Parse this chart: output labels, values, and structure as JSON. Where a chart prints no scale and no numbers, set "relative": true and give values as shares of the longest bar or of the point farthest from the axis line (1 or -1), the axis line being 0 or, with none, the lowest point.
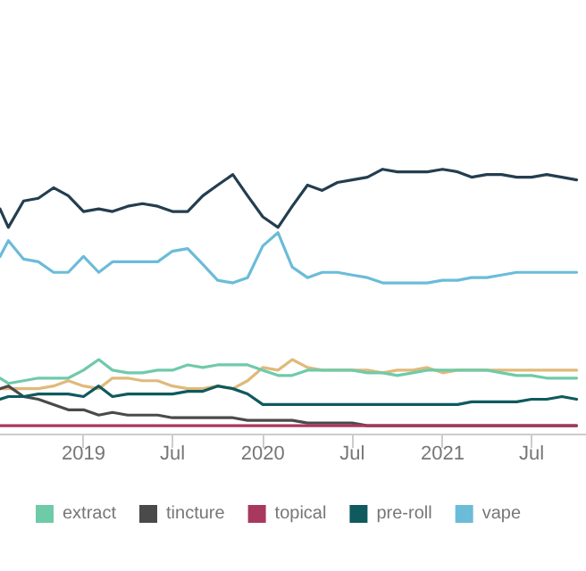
{
  "chart_data": {
    "type": "line",
    "relative": true,
    "legend": "bottom",
    "marker": "none",
    "line_style": "solid",
    "x": [
      "2018-07-15",
      "2018-08",
      "2018-09",
      "2018-10",
      "2018-11",
      "2018-12",
      "2019-01",
      "2019-02",
      "2019-03",
      "2019-04",
      "2019-05",
      "2019-06",
      "2019-07",
      "2019-08",
      "2019-09",
      "2019-10",
      "2019-11",
      "2019-12",
      "2020-01",
      "2020-02",
      "2020-03",
      "2020-04",
      "2020-05",
      "2020-06",
      "2020-07",
      "2020-08",
      "2020-09",
      "2020-10",
      "2020-11",
      "2020-12",
      "2021-01",
      "2021-02",
      "2021-03",
      "2021-04",
      "2021-05",
      "2021-06",
      "2021-07",
      "2021-08",
      "2021-09",
      "2021-10"
    ],
    "xlim": [
      "2018-07-15",
      "2021-10-20"
    ],
    "xticks": [
      {
        "value": "2019-01",
        "label": "2019"
      },
      {
        "value": "2019-07",
        "label": "Jul"
      },
      {
        "value": "2020-01",
        "label": "2020"
      },
      {
        "value": "2020-07",
        "label": "Jul"
      },
      {
        "value": "2021-01",
        "label": "2021"
      },
      {
        "value": "2021-07",
        "label": "Jul"
      }
    ],
    "series": [
      {
        "color": "#243e4f",
        "values": [
          0.85,
          0.78,
          0.88,
          0.89,
          0.93,
          0.9,
          0.84,
          0.85,
          0.84,
          0.86,
          0.87,
          0.86,
          0.84,
          0.84,
          0.9,
          0.94,
          0.98,
          0.9,
          0.82,
          0.78,
          0.86,
          0.94,
          0.92,
          0.95,
          0.96,
          0.97,
          1,
          0.99,
          0.99,
          0.99,
          1,
          0.99,
          0.97,
          0.98,
          0.98,
          0.97,
          0.97,
          0.98,
          0.97,
          0.96
        ]
      },
      {
        "color": "#e0b97a",
        "values": [
          0.17,
          0.17,
          0.17,
          0.17,
          0.18,
          0.2,
          0.18,
          0.17,
          0.21,
          0.21,
          0.2,
          0.2,
          0.18,
          0.17,
          0.17,
          0.18,
          0.17,
          0.2,
          0.25,
          0.24,
          0.28,
          0.25,
          0.24,
          0.24,
          0.24,
          0.24,
          0.23,
          0.24,
          0.24,
          0.25,
          0.23,
          0.24,
          0.24,
          0.24,
          0.24,
          0.24,
          0.24,
          0.24,
          0.24,
          0.24
        ]
      },
      {
        "name": "extract",
        "color": "#6fcaa8",
        "values": [
          0.21,
          0.19,
          0.2,
          0.21,
          0.21,
          0.21,
          0.24,
          0.28,
          0.24,
          0.23,
          0.23,
          0.24,
          0.24,
          0.26,
          0.25,
          0.26,
          0.26,
          0.26,
          0.24,
          0.22,
          0.22,
          0.24,
          0.24,
          0.24,
          0.24,
          0.23,
          0.23,
          0.22,
          0.23,
          0.24,
          0.24,
          0.24,
          0.24,
          0.24,
          0.23,
          0.22,
          0.22,
          0.21,
          0.21,
          0.21
        ]
      },
      {
        "name": "tincture",
        "color": "#4a4a4a",
        "values": [
          0.17,
          0.18,
          0.14,
          0.13,
          0.11,
          0.09,
          0.09,
          0.07,
          0.08,
          0.07,
          0.07,
          0.07,
          0.06,
          0.06,
          0.06,
          0.06,
          0.06,
          0.05,
          0.05,
          0.05,
          0.05,
          0.04,
          0.04,
          0.04,
          0.04,
          0.03,
          0.03,
          0.03,
          0.03,
          0.03,
          0.03,
          0.03,
          0.03,
          0.03,
          0.03,
          0.03,
          0.03,
          0.03,
          0.03,
          0.03
        ]
      },
      {
        "name": "topical",
        "color": "#a8385d",
        "values": [
          0.03,
          0.03,
          0.03,
          0.03,
          0.03,
          0.03,
          0.03,
          0.03,
          0.03,
          0.03,
          0.03,
          0.03,
          0.03,
          0.03,
          0.03,
          0.03,
          0.03,
          0.03,
          0.03,
          0.03,
          0.03,
          0.03,
          0.03,
          0.03,
          0.03,
          0.03,
          0.03,
          0.03,
          0.03,
          0.03,
          0.03,
          0.03,
          0.03,
          0.03,
          0.03,
          0.03,
          0.03,
          0.03,
          0.03,
          0.03
        ]
      },
      {
        "name": "pre-roll",
        "color": "#0e5a5e",
        "values": [
          0.13,
          0.14,
          0.14,
          0.15,
          0.15,
          0.15,
          0.14,
          0.18,
          0.14,
          0.15,
          0.15,
          0.15,
          0.15,
          0.16,
          0.16,
          0.18,
          0.17,
          0.15,
          0.11,
          0.11,
          0.11,
          0.11,
          0.11,
          0.11,
          0.11,
          0.11,
          0.11,
          0.11,
          0.11,
          0.11,
          0.11,
          0.11,
          0.12,
          0.12,
          0.12,
          0.12,
          0.13,
          0.13,
          0.14,
          0.13
        ]
      },
      {
        "name": "vape",
        "color": "#6bbcd8",
        "values": [
          0.67,
          0.73,
          0.66,
          0.65,
          0.61,
          0.61,
          0.67,
          0.61,
          0.65,
          0.65,
          0.65,
          0.65,
          0.69,
          0.7,
          0.64,
          0.58,
          0.57,
          0.59,
          0.71,
          0.76,
          0.63,
          0.59,
          0.61,
          0.61,
          0.6,
          0.59,
          0.57,
          0.57,
          0.57,
          0.57,
          0.58,
          0.58,
          0.59,
          0.59,
          0.6,
          0.61,
          0.61,
          0.61,
          0.61,
          0.61
        ]
      }
    ]
  }
}
